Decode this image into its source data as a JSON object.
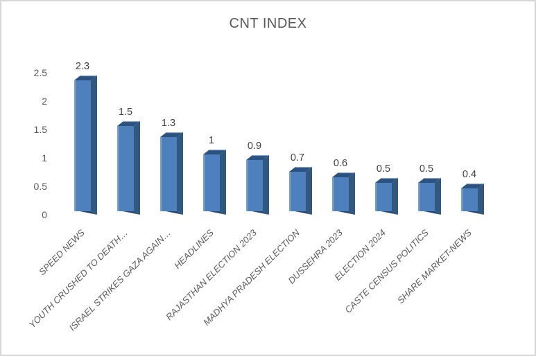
{
  "window": {
    "background": "#ffffff",
    "frame_border_color": "#d6d6d6"
  },
  "chart": {
    "title_color": "#595959",
    "axis_label_color": "#595959",
    "value_label_color": "#404040",
    "category_label_color": "#595959",
    "bar_front_color": "#4e80bd",
    "bar_side_color": "#31597f",
    "bar_top_color": "#2c5380",
    "bar_bottom_color": "#27496f",
    "bar_highlight_color": "#7fa5d1"
  },
  "chart_data": {
    "type": "bar",
    "style": "3d-column",
    "title": "CNT INDEX",
    "xlabel": "",
    "ylabel": "",
    "grid": false,
    "legend": false,
    "ylim": [
      0,
      2.5
    ],
    "y_ticks": [
      0,
      0.5,
      1,
      1.5,
      2,
      2.5
    ],
    "y_tick_labels": [
      "0",
      "0.5",
      "1",
      "1.5",
      "2",
      "2.5"
    ],
    "categories": [
      "SPEED NEWS",
      "YOUTH CRUSHED TO DEATH…",
      "ISRAEL STRIKES GAZA AGAIN…",
      "HEADLINES",
      "RAJASTHAN ELECTION 2023",
      "MADHYA PRADESH ELECTION",
      "DUSSEHRA 2023",
      "ELECTION 2024",
      "CASTE CENSUS POLITICS",
      "SHARE MARKET-NEWS"
    ],
    "values": [
      2.3,
      1.5,
      1.3,
      1,
      0.9,
      0.7,
      0.6,
      0.5,
      0.5,
      0.4
    ],
    "value_labels": [
      "2.3",
      "1.5",
      "1.3",
      "1",
      "0.9",
      "0.7",
      "0.6",
      "0.5",
      "0.5",
      "0.4"
    ]
  }
}
